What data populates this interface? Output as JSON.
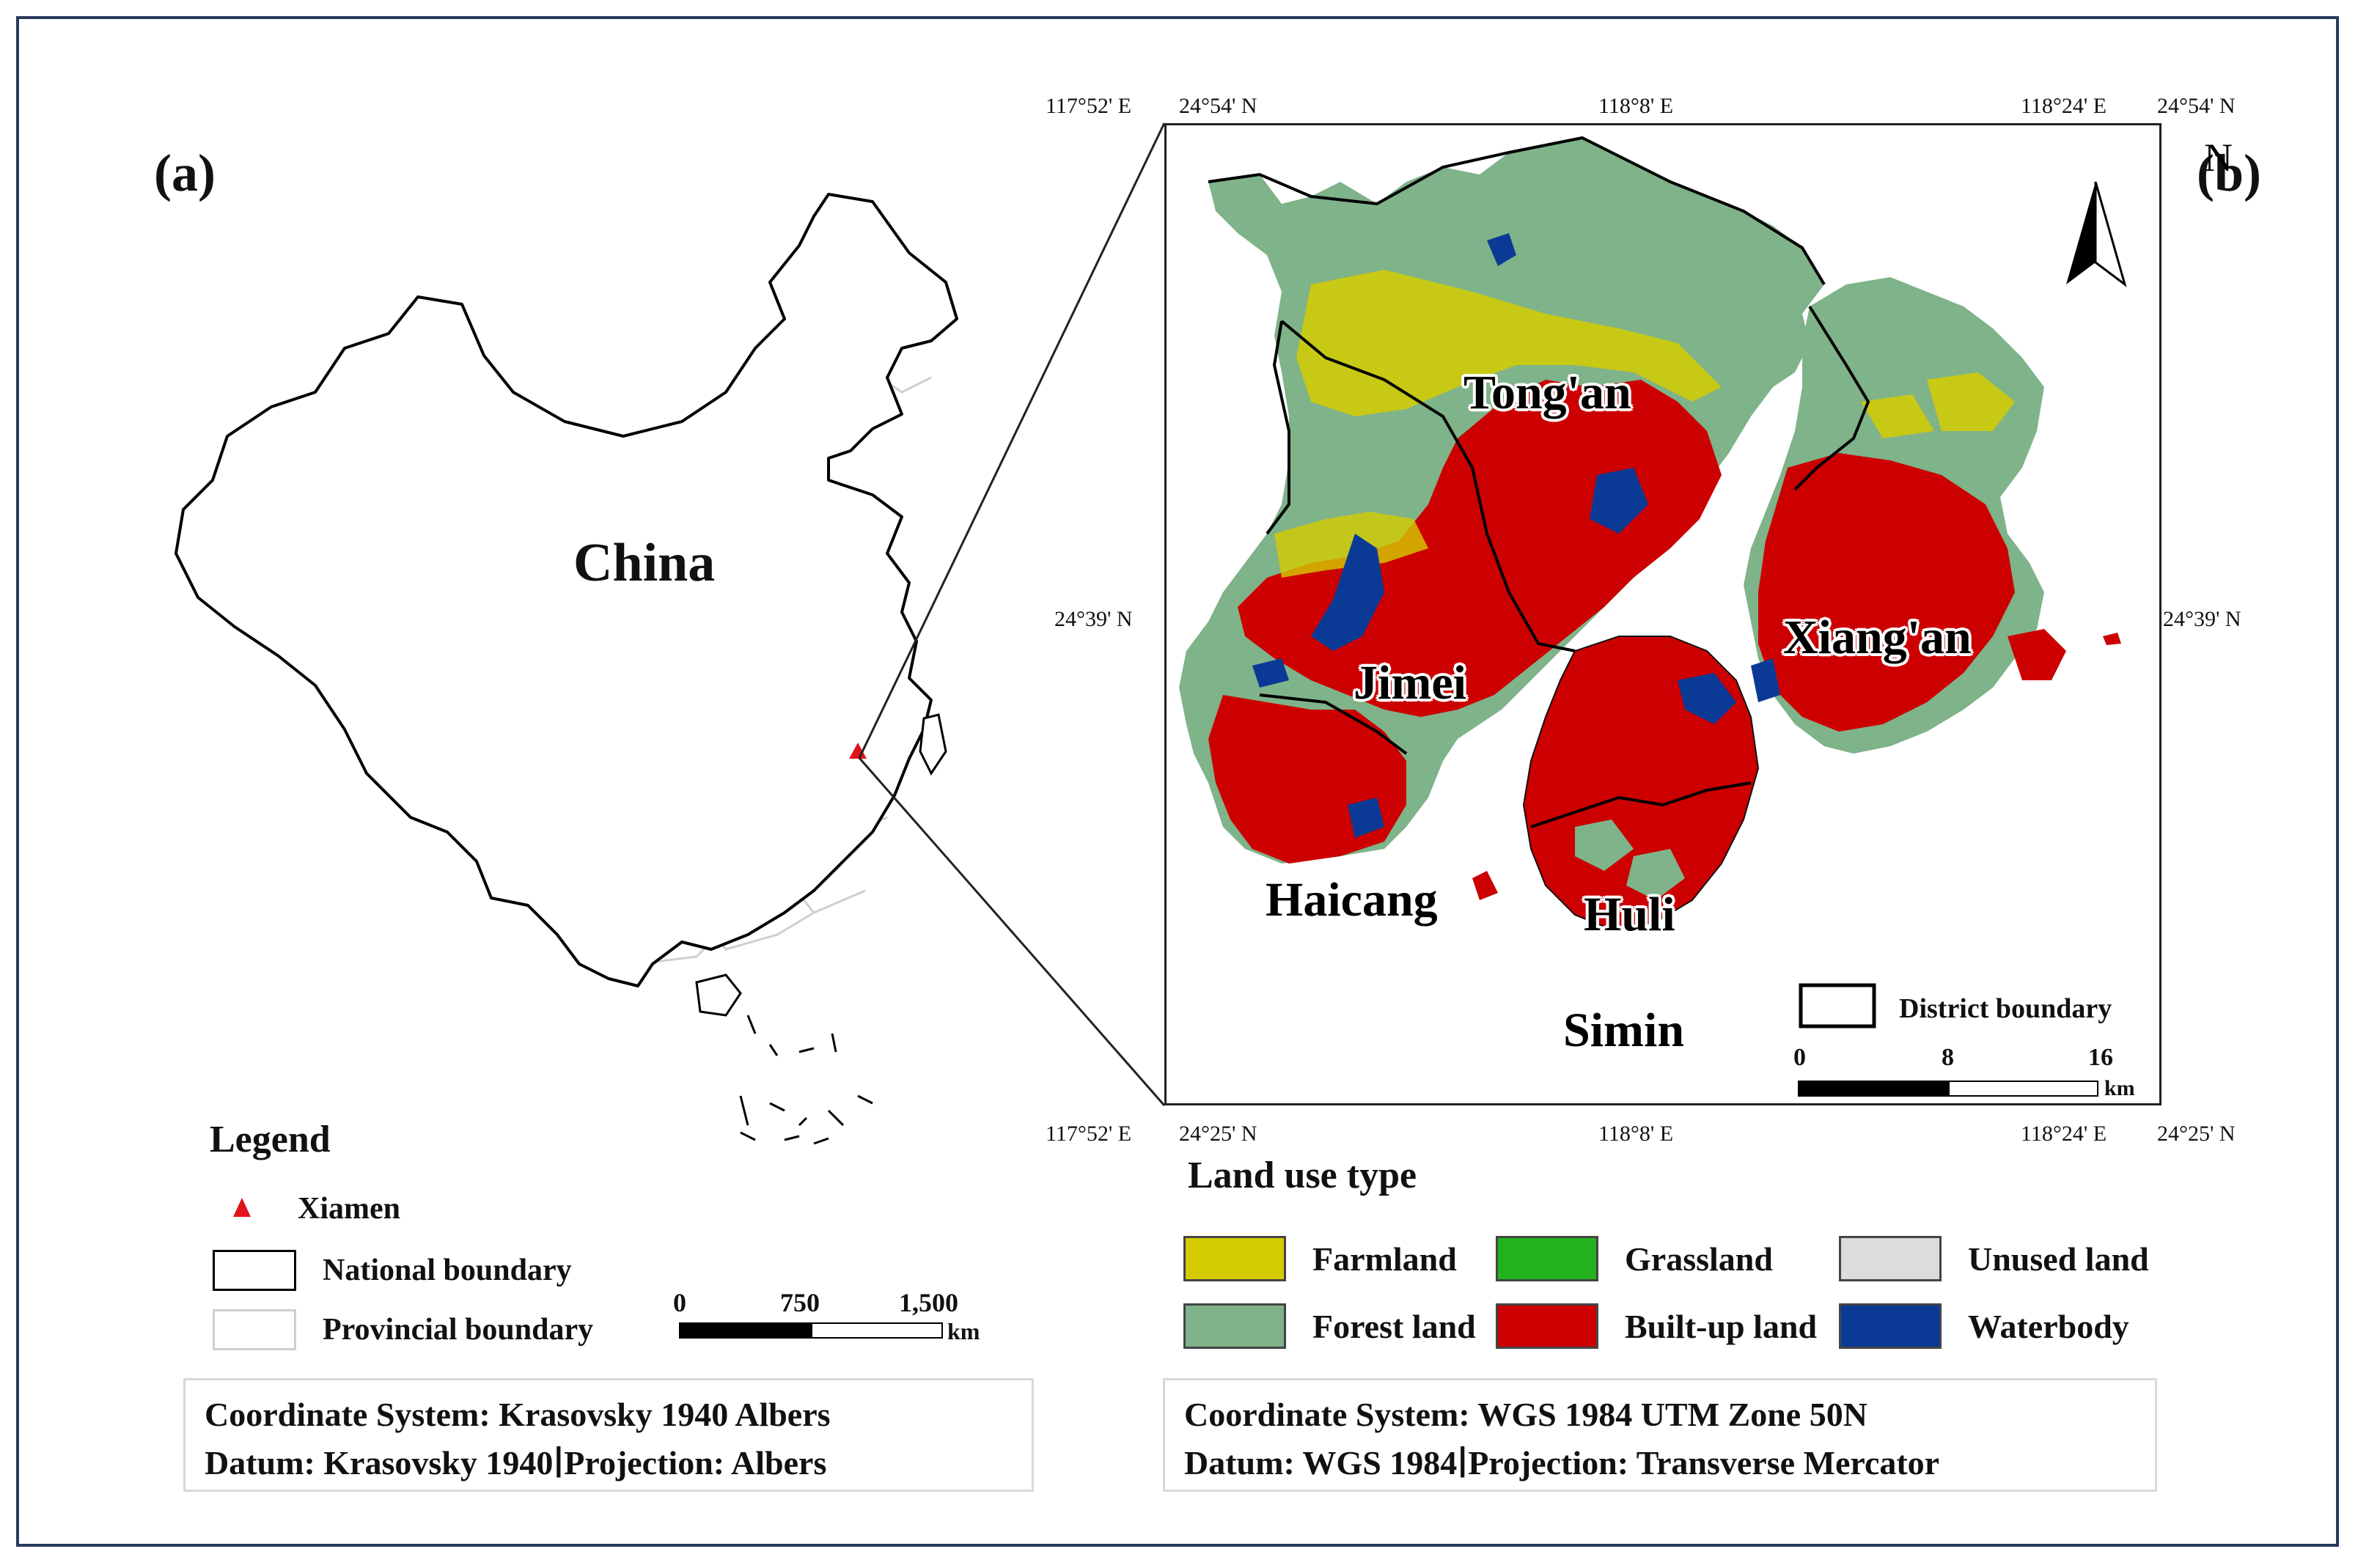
{
  "panel_a": {
    "label": "(a)",
    "country_label": "China",
    "legend": {
      "title": "Legend",
      "items": [
        {
          "label": "Xiamen",
          "symbol": "red-triangle"
        },
        {
          "label": "National boundary",
          "symbol": "black-outline-box"
        },
        {
          "label": "Provincial boundary",
          "symbol": "grey-outline-box"
        }
      ]
    },
    "scale": {
      "ticks": [
        "0",
        "750",
        "1,500"
      ],
      "unit": "km"
    },
    "coordinate_system": "Coordinate System: Krasovsky 1940 Albers",
    "datum": "Datum: Krasovsky 1940∣Projection: Albers"
  },
  "panel_b": {
    "label": "(b)",
    "north_label": "N",
    "coords": {
      "top_left_lon": "117°52' E",
      "top_left_lat": "24°54' N",
      "top_mid": "118°8' E",
      "top_right_lon": "118°24' E",
      "top_right_lat": "24°54' N",
      "left_mid": "24°39' N",
      "right_mid": "24°39' N",
      "bottom_left_lon": "117°52' E",
      "bottom_left_lat": "24°25' N",
      "bottom_mid": "118°8' E",
      "bottom_right_lon": "118°24' E",
      "bottom_right_lat": "24°25' N"
    },
    "districts": [
      "Tong'an",
      "Jimei",
      "Xiang'an",
      "Haicang",
      "Huli",
      "Simin"
    ],
    "district_boundary_label": "District boundary",
    "scale": {
      "ticks": [
        "0",
        "8",
        "16"
      ],
      "unit": "km"
    },
    "land_use": {
      "title": "Land use type",
      "items": [
        {
          "label": "Farmland",
          "color": "#d4cc00"
        },
        {
          "label": "Grassland",
          "color": "#22b21e"
        },
        {
          "label": "Unused land",
          "color": "#dcdcdc"
        },
        {
          "label": "Forest land",
          "color": "#7fb38a"
        },
        {
          "label": "Built-up land",
          "color": "#cc0000"
        },
        {
          "label": "Waterbody",
          "color": "#0a3a96"
        }
      ]
    },
    "coordinate_system": "Coordinate System: WGS 1984 UTM Zone 50N",
    "datum": "Datum: WGS 1984∣Projection: Transverse Mercator"
  },
  "colors": {
    "frame": "#2a3a5c",
    "xiamen_marker": "#e0141c",
    "provincial_boundary": "#cfcfcf"
  }
}
